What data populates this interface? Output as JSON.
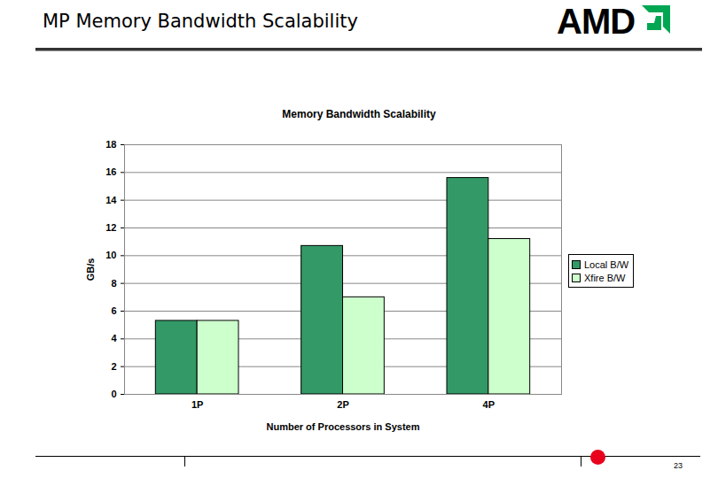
{
  "slide": {
    "title": "MP Memory Bandwidth Scalability",
    "logo": "AMD",
    "page": 23
  },
  "chart_data": {
    "type": "bar",
    "title": "Memory Bandwidth Scalability",
    "categories": [
      "1P",
      "2P",
      "4P"
    ],
    "series": [
      {
        "name": "Local B/W",
        "color": "#339966",
        "values": [
          5.3,
          10.7,
          15.6
        ]
      },
      {
        "name": "Xfire B/W",
        "color": "#ccffcc",
        "values": [
          5.3,
          7.0,
          11.2
        ]
      }
    ],
    "x_label": "Number of Processors in System",
    "y_label": "GB/s",
    "ylim": [
      0,
      18
    ],
    "yticks": [
      0,
      2,
      4,
      6,
      8,
      10,
      12,
      14,
      16,
      18
    ],
    "grid": true,
    "legend": "right"
  }
}
